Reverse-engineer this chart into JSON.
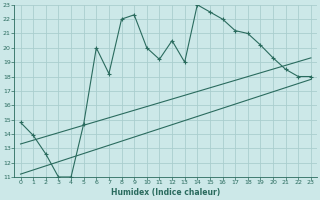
{
  "xlabel": "Humidex (Indice chaleur)",
  "background_color": "#cce8e8",
  "grid_color": "#aacece",
  "line_color": "#2a6b5e",
  "xlim": [
    -0.5,
    23.5
  ],
  "ylim": [
    11,
    23
  ],
  "xticks": [
    0,
    1,
    2,
    3,
    4,
    5,
    6,
    7,
    8,
    9,
    10,
    11,
    12,
    13,
    14,
    15,
    16,
    17,
    18,
    19,
    20,
    21,
    22,
    23
  ],
  "yticks": [
    11,
    12,
    13,
    14,
    15,
    16,
    17,
    18,
    19,
    20,
    21,
    22,
    23
  ],
  "line1_x": [
    0,
    1,
    2,
    3,
    4,
    5,
    6,
    7,
    8,
    9,
    10,
    11,
    12,
    13,
    14,
    15,
    16,
    17,
    18,
    19,
    20,
    21,
    22,
    23
  ],
  "line1_y": [
    14.8,
    13.9,
    12.6,
    11.0,
    11.0,
    14.7,
    20.0,
    18.2,
    22.0,
    22.3,
    20.0,
    19.2,
    20.5,
    19.0,
    23.0,
    22.5,
    22.0,
    21.2,
    21.0,
    20.2,
    19.3,
    18.5,
    18.0,
    18.0
  ],
  "line2_x": [
    0,
    23
  ],
  "line2_y": [
    13.3,
    19.3
  ],
  "line3_x": [
    0,
    23
  ],
  "line3_y": [
    11.2,
    17.8
  ]
}
